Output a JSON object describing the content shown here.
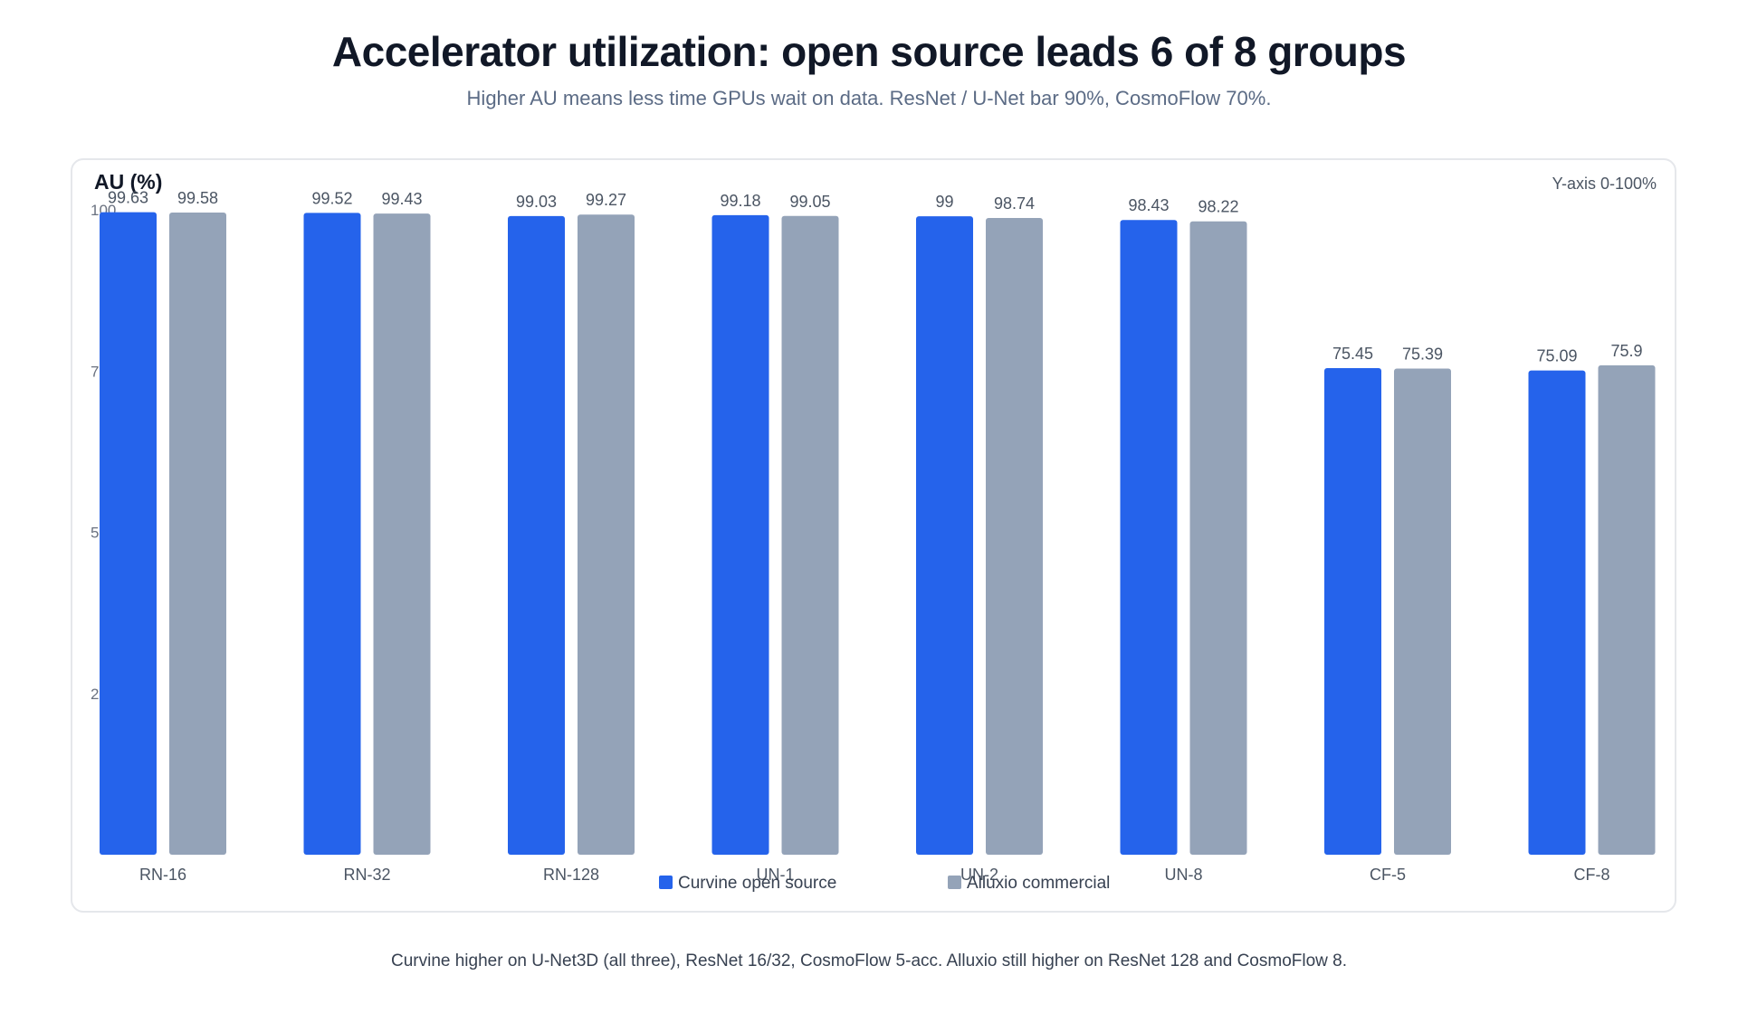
{
  "header": {
    "title": "Accelerator utilization: open source leads 6 of 8 groups",
    "subtitle": "Higher AU means less time GPUs wait on data. ResNet / U-Net bar 90%, CosmoFlow 70%."
  },
  "footer": {
    "note": "Curvine higher on U-Net3D (all three), ResNet 16/32, CosmoFlow 5-acc. Alluxio still higher on ResNet 128 and CosmoFlow 8."
  },
  "chart_data": {
    "type": "bar",
    "ylabel": "AU (%)",
    "scale_note": "Y-axis 0-100%",
    "ylim": [
      0,
      100
    ],
    "yticks": [
      25,
      50,
      75,
      100
    ],
    "grid": false,
    "legend_position": "bottom-center",
    "categories": [
      "RN-16",
      "RN-32",
      "RN-128",
      "UN-1",
      "UN-2",
      "UN-8",
      "CF-5",
      "CF-8"
    ],
    "series": [
      {
        "name": "Curvine open source",
        "color": "#2563eb",
        "values": [
          99.63,
          99.52,
          99.03,
          99.18,
          99,
          98.43,
          75.45,
          75.09
        ]
      },
      {
        "name": "Alluxio commercial",
        "color": "#94a3b8",
        "values": [
          99.58,
          99.43,
          99.27,
          99.05,
          98.74,
          98.22,
          75.39,
          75.9
        ]
      }
    ]
  }
}
